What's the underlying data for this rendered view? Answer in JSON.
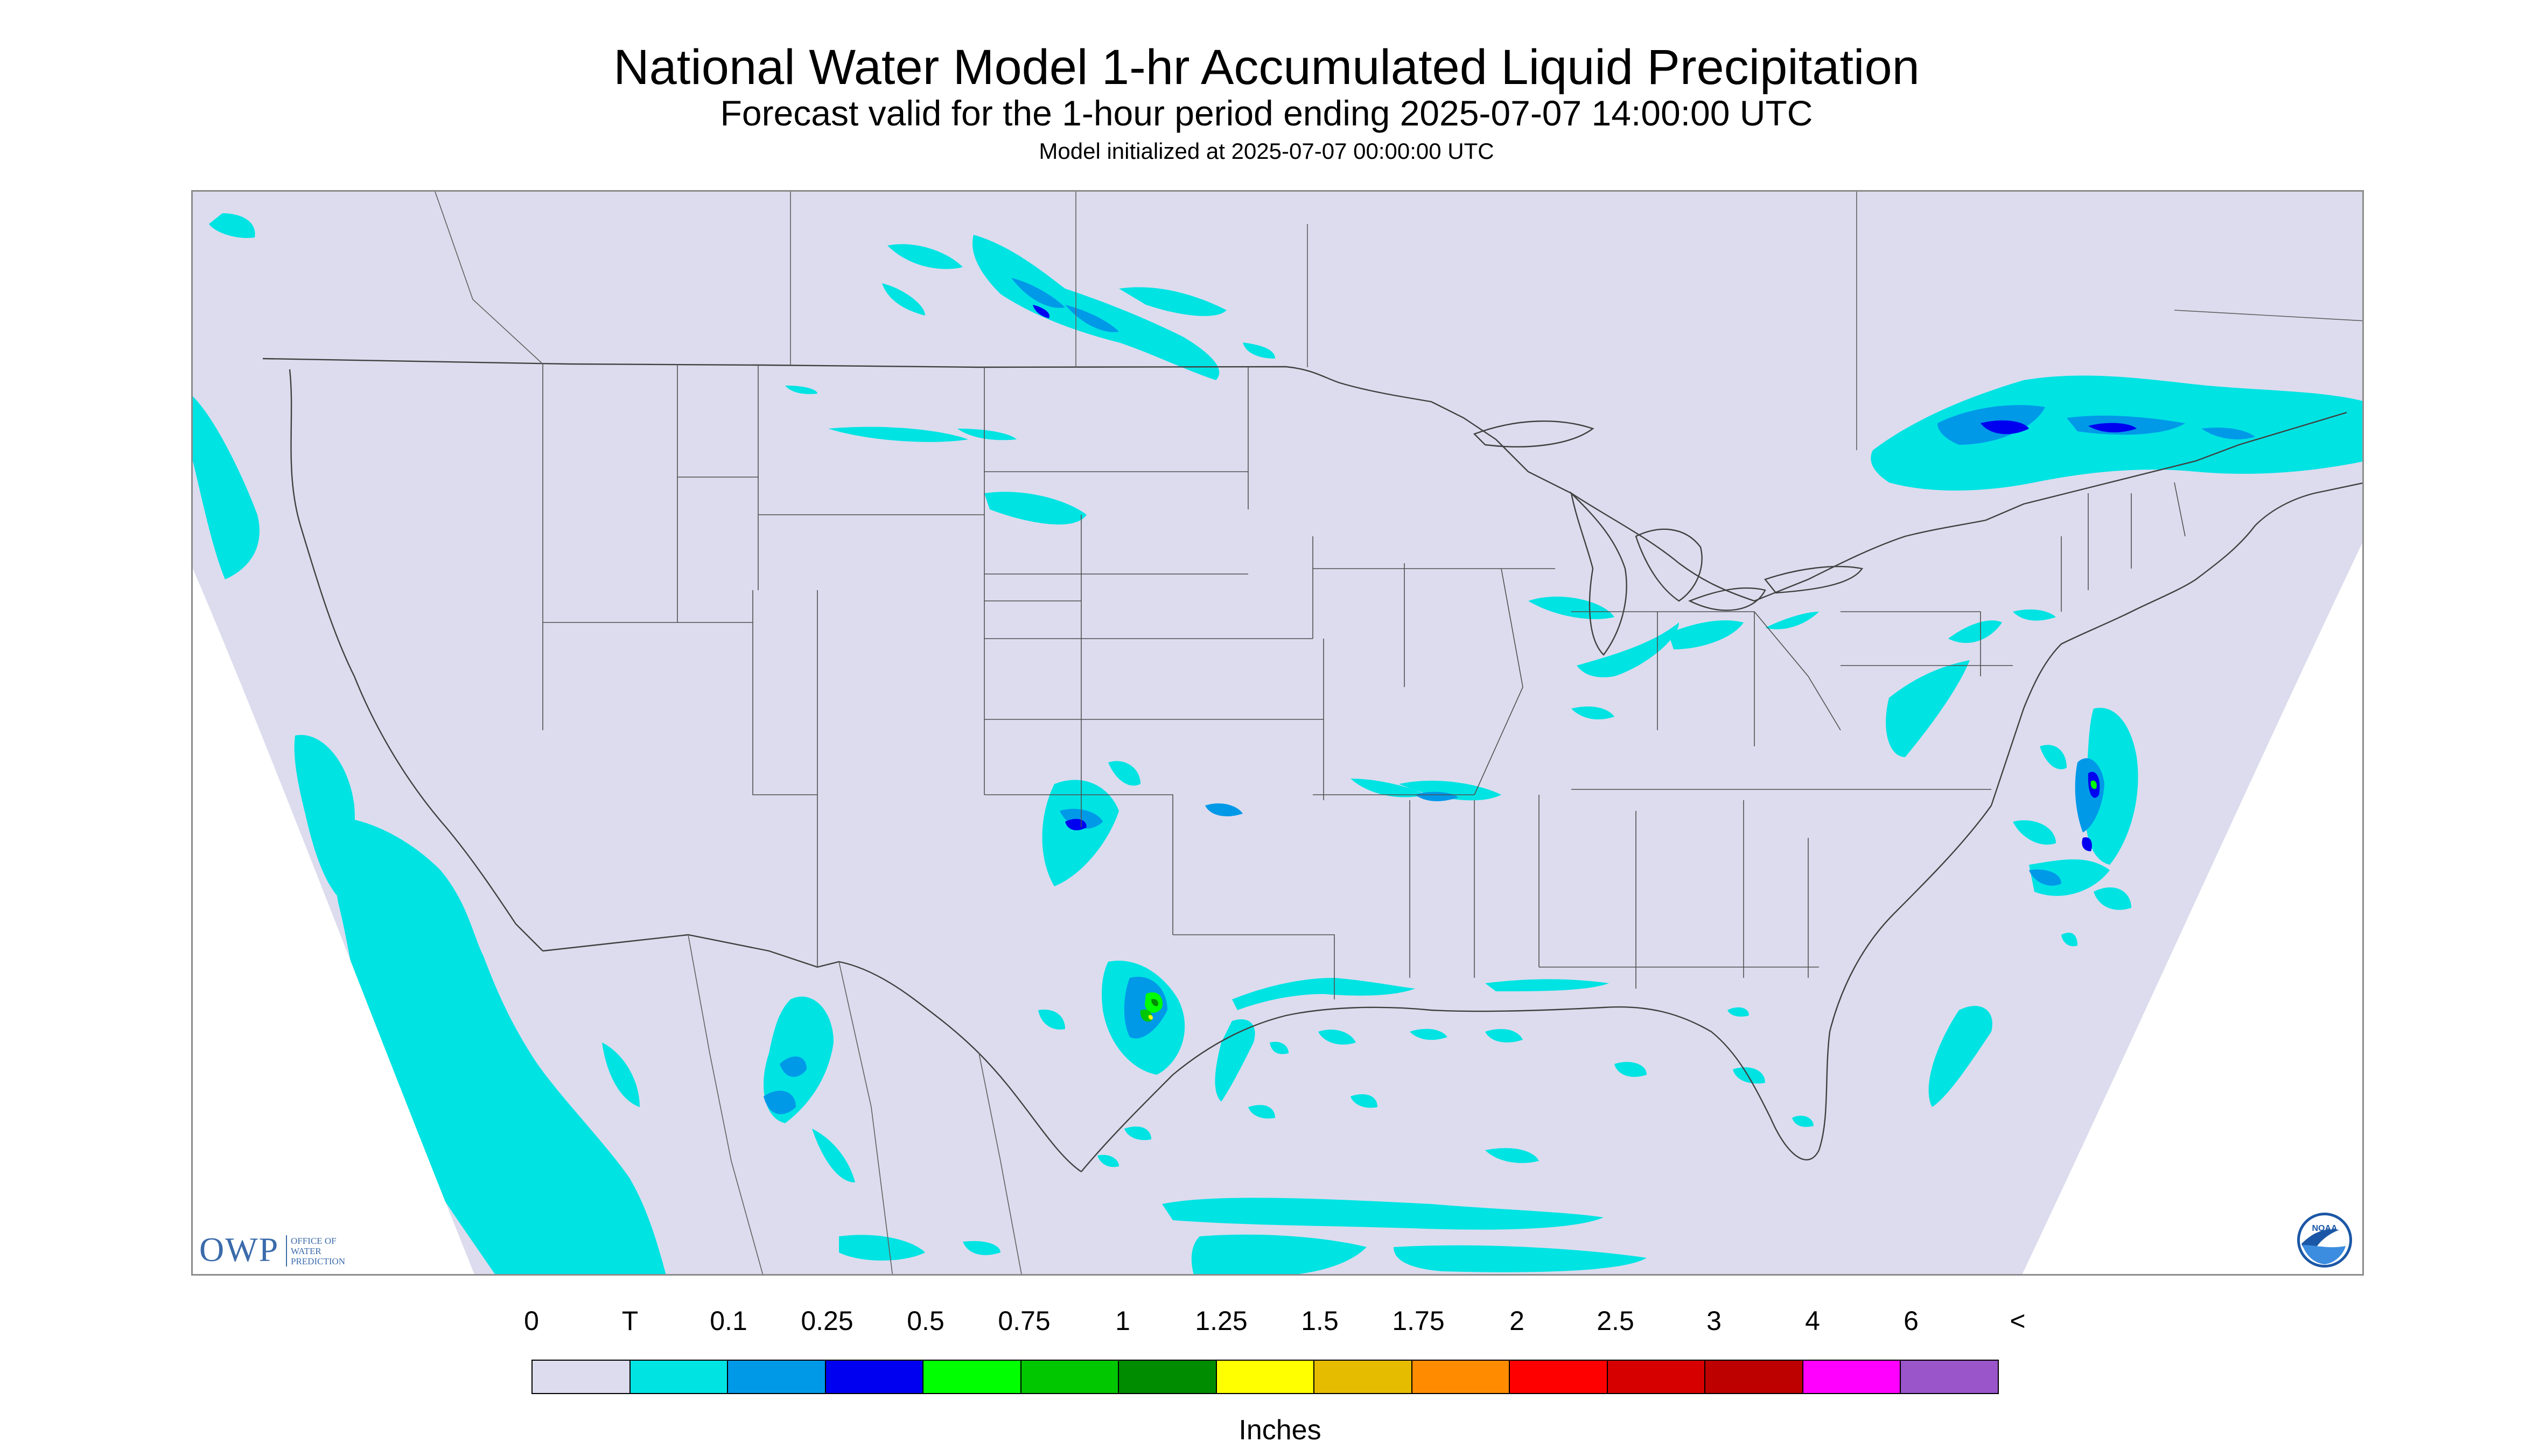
{
  "header": {
    "title": "National Water Model 1-hr Accumulated Liquid Precipitation",
    "subtitle": "Forecast valid for the 1-hour period ending 2025-07-07 14:00:00 UTC",
    "init_line": "Model initialized at 2025-07-07 00:00:00 UTC"
  },
  "logos": {
    "owp_text": "OWP",
    "owp_small": [
      "OFFICE OF",
      "WATER",
      "PREDICTION"
    ],
    "noaa_text": "NOAA"
  },
  "legend": {
    "labels": [
      "0",
      "T",
      "0.1",
      "0.25",
      "0.5",
      "0.75",
      "1",
      "1.25",
      "1.5",
      "1.75",
      "2",
      "2.5",
      "3",
      "4",
      "6",
      "<"
    ],
    "colors": [
      "#dcdcee",
      "#00e3e3",
      "#0099e8",
      "#0000f0",
      "#00ff00",
      "#00c700",
      "#008c00",
      "#ffff00",
      "#e6bc00",
      "#ff8c00",
      "#ff0000",
      "#d70000",
      "#bd0000",
      "#ff00ff",
      "#9955c9"
    ],
    "units": "Inches"
  },
  "map": {
    "background_color": "#dcdcee",
    "precip_colors": {
      "trace": "#00e3e3",
      "p01": "#0099e8",
      "p025": "#0000f0",
      "p05": "#00ff00",
      "p075": "#00c700",
      "p1": "#008c00",
      "p125": "#ffff00"
    }
  }
}
